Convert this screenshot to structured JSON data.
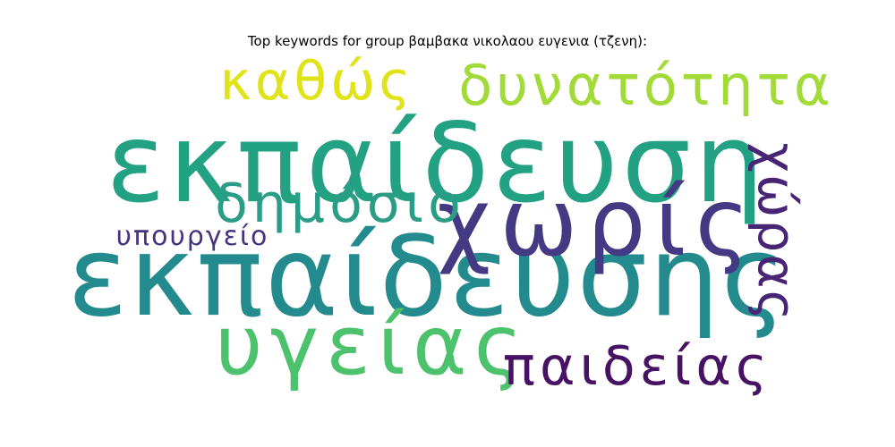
{
  "title": "Top keywords for group βαμβακα νικολαου ευγενια (τζενη):",
  "words": [
    {
      "text": "εκπαίδευση",
      "color": "#23a183"
    },
    {
      "text": "εκπαίδευσης",
      "color": "#238a8d"
    },
    {
      "text": "χωρίς",
      "color": "#443983"
    },
    {
      "text": "υγείας",
      "color": "#4cc26c"
    },
    {
      "text": "δυνατότητα",
      "color": "#a2da37"
    },
    {
      "text": "καθώς",
      "color": "#dfe318"
    },
    {
      "text": "δημόσιο",
      "color": "#2b9c85"
    },
    {
      "text": "παιδείας",
      "color": "#471164"
    },
    {
      "text": "χώρας",
      "color": "#482475"
    },
    {
      "text": "υπουργείο",
      "color": "#46337e"
    }
  ]
}
